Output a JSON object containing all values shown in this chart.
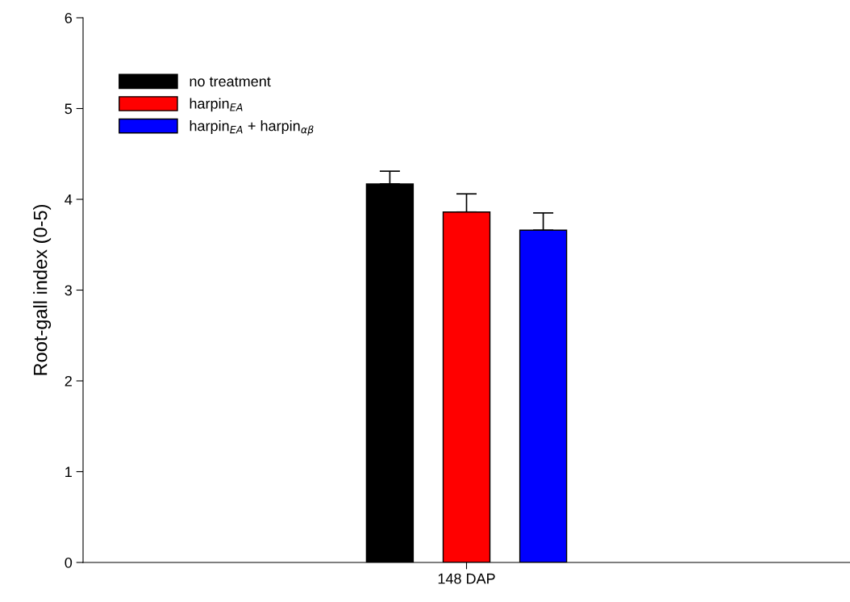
{
  "chart_data": {
    "type": "bar",
    "ylabel": "Root-gall index (0-5)",
    "categories": [
      "148 DAP"
    ],
    "series": [
      {
        "name": "no treatment",
        "color": "#000000",
        "values": [
          4.17
        ],
        "errors": [
          [
            4.17,
            4.31
          ]
        ]
      },
      {
        "name": "harpin$_{EA}$",
        "color": "#ff0000",
        "values": [
          3.86
        ],
        "errors": [
          [
            3.86,
            4.06
          ]
        ]
      },
      {
        "name": "harpin$_{EA}$ + harpin$_{αβ}$",
        "color": "#0000ff",
        "values": [
          3.66
        ],
        "errors": [
          [
            3.66,
            3.85
          ]
        ]
      }
    ],
    "ylim": [
      0,
      6
    ],
    "yticks": [
      0,
      1,
      2,
      3,
      4,
      5,
      6
    ],
    "grid": false,
    "legend": "top left"
  }
}
